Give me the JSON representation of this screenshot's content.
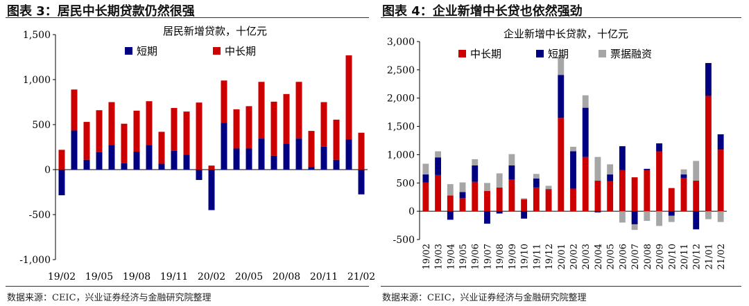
{
  "left": {
    "figure_title": "图表 3：居民中长期贷款仍然很强",
    "source": "数据来源：CEIC，兴业证券经济与金融研究院整理"
  },
  "right": {
    "figure_title": "图表 4：企业新增中长贷也依然强劲",
    "source": "数据来源：CEIC，兴业证券经济与金融研究院整理"
  },
  "chart_data": [
    {
      "type": "bar",
      "stacked": true,
      "title": "居民新增贷款，十亿元",
      "ylim": [
        -1000,
        1500
      ],
      "yticks": [
        "-1,000",
        "-500",
        "0",
        "500",
        "1,000",
        "1,500"
      ],
      "grid": false,
      "legend_position": "top",
      "x_tick_labels": [
        "19/02",
        "19/05",
        "19/08",
        "19/11",
        "20/02",
        "20/05",
        "20/08",
        "20/11",
        "21/02"
      ],
      "categories": [
        "19/02",
        "19/03",
        "19/04",
        "19/05",
        "19/06",
        "19/07",
        "19/08",
        "19/09",
        "19/10",
        "19/11",
        "19/12",
        "20/01",
        "20/02",
        "20/03",
        "20/04",
        "20/05",
        "20/06",
        "20/07",
        "20/08",
        "20/09",
        "20/10",
        "20/11",
        "20/12",
        "21/01",
        "21/02"
      ],
      "series": [
        {
          "name": "短期",
          "color": "#000080",
          "values": [
            -285,
            435,
            110,
            195,
            275,
            70,
            200,
            275,
            65,
            210,
            165,
            -115,
            -450,
            520,
            235,
            235,
            345,
            155,
            290,
            345,
            30,
            255,
            110,
            335,
            -275
          ]
        },
        {
          "name": "中长期",
          "color": "#cc0000",
          "values": [
            220,
            455,
            420,
            465,
            475,
            440,
            455,
            485,
            355,
            475,
            480,
            745,
            45,
            470,
            435,
            470,
            630,
            600,
            550,
            630,
            400,
            495,
            445,
            935,
            410
          ]
        }
      ]
    },
    {
      "type": "bar",
      "stacked": true,
      "title": "企业新增中长贷款，十亿元",
      "ylim": [
        -500,
        3000
      ],
      "yticks": [
        "-500",
        "0",
        "500",
        "1,000",
        "1,500",
        "2,000",
        "2,500",
        "3,000"
      ],
      "grid": false,
      "legend_position": "top",
      "categories": [
        "19/02",
        "19/03",
        "19/04",
        "19/05",
        "19/06",
        "19/07",
        "19/08",
        "19/09",
        "19/10",
        "19/11",
        "19/12",
        "20/01",
        "20/02",
        "20/03",
        "20/04",
        "20/05",
        "20/06",
        "20/07",
        "20/08",
        "20/09",
        "20/10",
        "20/11",
        "20/12",
        "21/01",
        "21/02"
      ],
      "series": [
        {
          "name": "中长期",
          "color": "#cc0000",
          "values": [
            510,
            640,
            280,
            230,
            520,
            360,
            420,
            560,
            210,
            420,
            380,
            1650,
            400,
            960,
            540,
            530,
            730,
            600,
            730,
            1060,
            410,
            590,
            540,
            2040,
            1090
          ]
        },
        {
          "name": "短期",
          "color": "#000080",
          "values": [
            140,
            310,
            -150,
            110,
            290,
            -220,
            -40,
            250,
            -130,
            160,
            10,
            760,
            660,
            870,
            -20,
            120,
            420,
            -230,
            20,
            140,
            -80,
            60,
            -320,
            580,
            270
          ]
        },
        {
          "name": "票据融资",
          "color": "#a6a6a6",
          "values": [
            190,
            110,
            200,
            170,
            110,
            140,
            250,
            200,
            20,
            80,
            60,
            330,
            80,
            220,
            420,
            180,
            -200,
            -100,
            -170,
            -260,
            -110,
            90,
            350,
            -140,
            -190
          ]
        }
      ]
    }
  ]
}
